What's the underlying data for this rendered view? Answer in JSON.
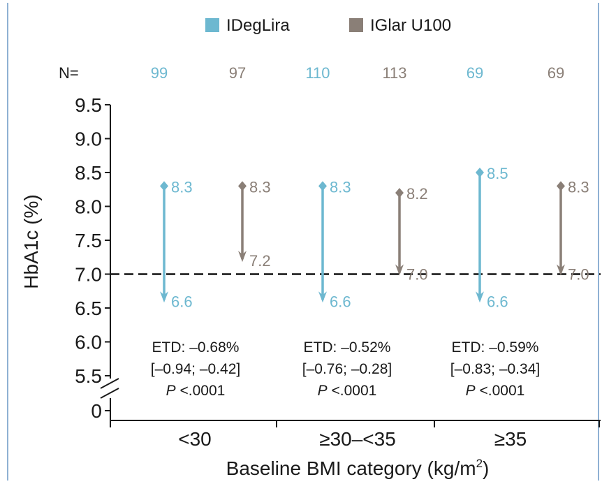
{
  "chart_data": {
    "type": "range-arrow",
    "legend": [
      {
        "name": "IDegLira",
        "color": "#6db8d0"
      },
      {
        "name": "IGlar U100",
        "color": "#8a7f77"
      }
    ],
    "legend_placement": "top-center",
    "n_label": "N=",
    "ylabel": "HbA1c (%)",
    "xlabel": "Baseline BMI category (kg/m",
    "xlabel_superscript": "2",
    "xlabel_close": ")",
    "yticks": [
      "9.5",
      "9.0",
      "8.5",
      "8.0",
      "7.5",
      "7.0",
      "6.5",
      "6.0",
      "5.5",
      "0"
    ],
    "ytick_values": [
      9.5,
      9.0,
      8.5,
      8.0,
      7.5,
      7.0,
      6.5,
      6.0,
      5.5,
      0
    ],
    "axis_break": true,
    "reference_line": 7.0,
    "categories": [
      "<30",
      "≥30–<35",
      "≥35"
    ],
    "groups": [
      {
        "category": "<30",
        "ideglira": {
          "n": "99",
          "baseline": 8.3,
          "end": 6.6,
          "baseline_label": "8.3",
          "end_label": "6.6"
        },
        "iglar": {
          "n": "97",
          "baseline": 8.3,
          "end": 7.2,
          "baseline_label": "8.3",
          "end_label": "7.2"
        },
        "etd": [
          "ETD: –0.68%",
          "[–0.94; –0.42]"
        ],
        "p_label": "P",
        "p_value": "<.0001"
      },
      {
        "category": "≥30–<35",
        "ideglira": {
          "n": "110",
          "baseline": 8.3,
          "end": 6.6,
          "baseline_label": "8.3",
          "end_label": "6.6"
        },
        "iglar": {
          "n": "113",
          "baseline": 8.2,
          "end": 7.0,
          "baseline_label": "8.2",
          "end_label": "7.0"
        },
        "etd": [
          "ETD: –0.52%",
          "[–0.76; –0.28]"
        ],
        "p_label": "P",
        "p_value": "<.0001"
      },
      {
        "category": "≥35",
        "ideglira": {
          "n": "69",
          "baseline": 8.5,
          "end": 6.6,
          "baseline_label": "8.5",
          "end_label": "6.6"
        },
        "iglar": {
          "n": "69",
          "baseline": 8.3,
          "end": 7.0,
          "baseline_label": "8.3",
          "end_label": "7.0"
        },
        "etd": [
          "ETD: –0.59%",
          "[–0.83; –0.34]"
        ],
        "p_label": "P",
        "p_value": "<.0001"
      }
    ]
  }
}
